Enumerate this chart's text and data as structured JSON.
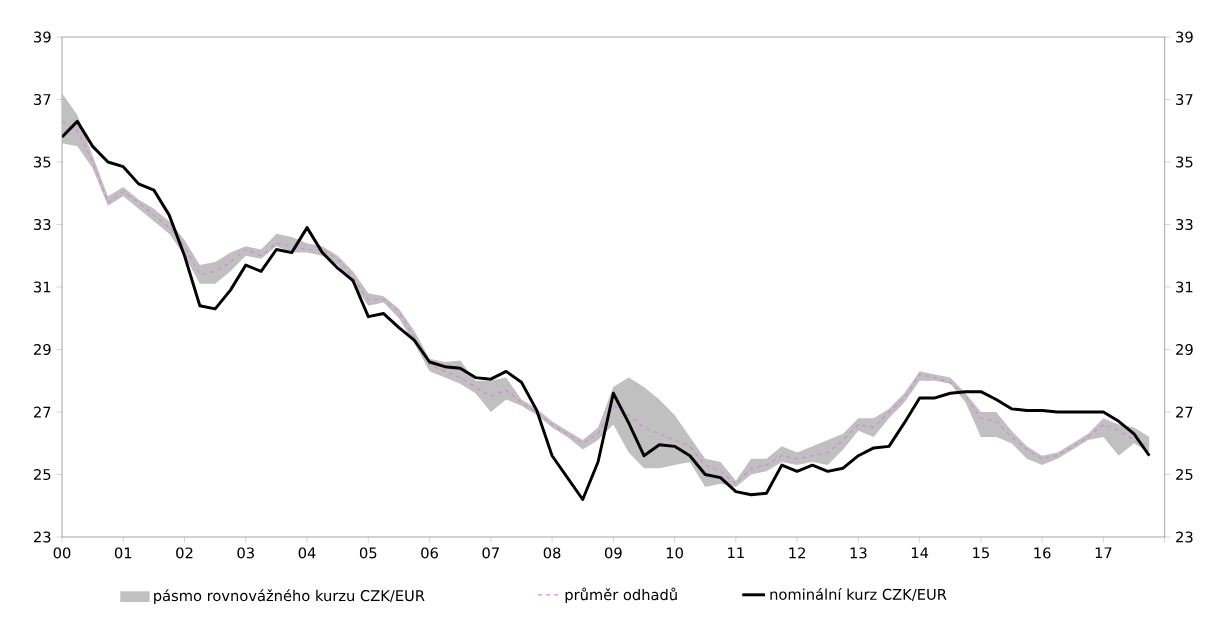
{
  "chart_data": {
    "type": "line",
    "x": [
      0,
      0.25,
      0.5,
      0.75,
      1,
      1.25,
      1.5,
      1.75,
      2,
      2.25,
      2.5,
      2.75,
      3,
      3.25,
      3.5,
      3.75,
      4,
      4.25,
      4.5,
      4.75,
      5,
      5.25,
      5.5,
      5.75,
      6,
      6.25,
      6.5,
      6.75,
      7,
      7.25,
      7.5,
      7.75,
      8,
      8.25,
      8.5,
      8.75,
      9,
      9.25,
      9.5,
      9.75,
      10,
      10.25,
      10.5,
      10.75,
      11,
      11.25,
      11.5,
      11.75,
      12,
      12.25,
      12.5,
      12.75,
      13,
      13.25,
      13.5,
      13.75,
      14,
      14.25,
      14.5,
      14.75,
      15,
      15.25,
      15.5,
      15.75,
      16,
      16.25,
      16.5,
      16.75,
      17,
      17.25,
      17.5,
      17.75
    ],
    "series": [
      {
        "name": "průměr odhadů",
        "color": "#e080e0",
        "line_style": "dashed",
        "values": [
          36.3,
          36.0,
          35.0,
          33.7,
          34.05,
          33.7,
          33.3,
          32.9,
          32.3,
          31.4,
          31.5,
          31.8,
          32.2,
          32.0,
          32.4,
          32.3,
          32.2,
          32.2,
          31.9,
          31.3,
          30.6,
          30.6,
          30.2,
          29.4,
          28.5,
          28.3,
          28.1,
          27.8,
          27.5,
          27.7,
          27.3,
          27.0,
          26.6,
          26.3,
          26.0,
          26.3,
          27.2,
          26.9,
          26.5,
          26.3,
          26.1,
          25.9,
          25.3,
          25.1,
          24.7,
          25.2,
          25.3,
          25.6,
          25.5,
          25.6,
          25.7,
          26.1,
          26.6,
          26.5,
          27.0,
          27.45,
          28.2,
          28.1,
          27.95,
          27.5,
          26.8,
          26.7,
          26.2,
          25.8,
          25.5,
          25.6,
          25.9,
          26.2,
          26.6,
          26.4,
          26.1,
          25.9
        ],
        "lower": [
          35.6,
          35.5,
          34.8,
          33.6,
          33.9,
          33.5,
          33.1,
          32.7,
          32.0,
          31.1,
          31.1,
          31.5,
          32.0,
          31.9,
          32.3,
          32.1,
          32.1,
          32.0,
          31.7,
          31.1,
          30.4,
          30.5,
          30.0,
          29.2,
          28.3,
          28.1,
          27.9,
          27.6,
          27.0,
          27.4,
          27.2,
          26.9,
          26.5,
          26.2,
          25.8,
          26.1,
          26.6,
          25.7,
          25.2,
          25.2,
          25.3,
          25.4,
          24.6,
          24.7,
          24.6,
          25.0,
          25.1,
          25.4,
          25.3,
          25.4,
          25.3,
          25.8,
          26.4,
          26.2,
          26.8,
          27.3,
          28.0,
          28.0,
          27.9,
          27.3,
          26.2,
          26.2,
          26.0,
          25.5,
          25.3,
          25.5,
          25.8,
          26.1,
          26.2,
          25.6,
          26.0,
          25.7
        ],
        "upper": [
          37.2,
          36.5,
          35.2,
          33.9,
          34.2,
          33.8,
          33.5,
          33.1,
          32.5,
          31.7,
          31.8,
          32.1,
          32.3,
          32.2,
          32.7,
          32.6,
          32.4,
          32.3,
          32.0,
          31.5,
          30.8,
          30.7,
          30.3,
          29.6,
          28.7,
          28.6,
          28.65,
          28.0,
          28.0,
          28.1,
          27.4,
          27.1,
          26.7,
          26.4,
          26.1,
          26.5,
          27.8,
          28.1,
          27.8,
          27.4,
          26.9,
          26.2,
          25.5,
          25.4,
          24.8,
          25.5,
          25.5,
          25.9,
          25.7,
          25.9,
          26.1,
          26.3,
          26.8,
          26.8,
          27.1,
          27.6,
          28.3,
          28.2,
          28.1,
          27.6,
          27.0,
          27.0,
          26.4,
          25.9,
          25.6,
          25.7,
          26.0,
          26.3,
          26.8,
          26.6,
          26.5,
          26.2
        ]
      },
      {
        "name": "nominální kurz CZK/EUR",
        "color": "#000000",
        "line_style": "solid",
        "values": [
          35.8,
          36.3,
          35.5,
          35.0,
          34.85,
          34.3,
          34.1,
          33.3,
          32.0,
          30.4,
          30.3,
          30.9,
          31.7,
          31.5,
          32.2,
          32.1,
          32.9,
          32.1,
          31.6,
          31.2,
          30.05,
          30.15,
          29.7,
          29.3,
          28.6,
          28.45,
          28.4,
          28.1,
          28.05,
          28.3,
          27.95,
          27.05,
          25.6,
          24.9,
          24.2,
          25.4,
          27.6,
          26.65,
          25.6,
          25.95,
          25.9,
          25.6,
          25.0,
          24.9,
          24.45,
          24.35,
          24.4,
          25.3,
          25.1,
          25.3,
          25.1,
          25.2,
          25.6,
          25.85,
          25.9,
          26.65,
          27.45,
          27.45,
          27.6,
          27.65,
          27.65,
          27.4,
          27.1,
          27.05,
          27.05,
          27.0,
          27.0,
          27.0,
          27.0,
          26.7,
          26.3,
          25.6
        ]
      }
    ],
    "annotations": [
      "pásmo rovnovážného kurzu CZK/EUR"
    ],
    "xlim": [
      0,
      18
    ],
    "xticks": [
      {
        "value": 0,
        "label": "00"
      },
      {
        "value": 1,
        "label": "01"
      },
      {
        "value": 2,
        "label": "02"
      },
      {
        "value": 3,
        "label": "03"
      },
      {
        "value": 4,
        "label": "04"
      },
      {
        "value": 5,
        "label": "05"
      },
      {
        "value": 6,
        "label": "06"
      },
      {
        "value": 7,
        "label": "07"
      },
      {
        "value": 8,
        "label": "08"
      },
      {
        "value": 9,
        "label": "09"
      },
      {
        "value": 10,
        "label": "10"
      },
      {
        "value": 11,
        "label": "11"
      },
      {
        "value": 12,
        "label": "12"
      },
      {
        "value": 13,
        "label": "13"
      },
      {
        "value": 14,
        "label": "14"
      },
      {
        "value": 15,
        "label": "15"
      },
      {
        "value": 16,
        "label": "16"
      },
      {
        "value": 17,
        "label": "17"
      },
      {
        "value": 18,
        "label": null
      }
    ],
    "ylim": [
      23,
      39
    ],
    "yticks": [
      23,
      25,
      27,
      29,
      31,
      33,
      35,
      37,
      39
    ],
    "y2lim": [
      23,
      39
    ],
    "y2ticks": [
      23,
      25,
      27,
      29,
      31,
      33,
      35,
      37,
      39
    ],
    "grid": false,
    "legend": "bottom",
    "marker": "none"
  }
}
